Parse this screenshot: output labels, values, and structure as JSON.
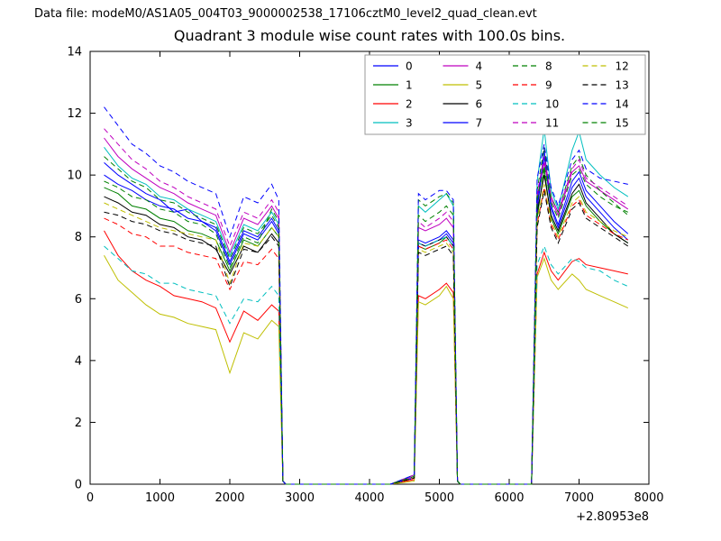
{
  "header": {
    "datafile_label": "Data file: modeM0/AS1A05_004T03_9000002538_17106cztM0_level2_quad_clean.evt"
  },
  "chart_data": {
    "type": "line",
    "title": "Quadrant 3 module wise count rates with 100.0s bins.",
    "xlabel": "",
    "ylabel": "",
    "xlim": [
      0,
      8000
    ],
    "ylim": [
      0,
      14
    ],
    "xticks": [
      0,
      1000,
      2000,
      3000,
      4000,
      5000,
      6000,
      7000,
      8000
    ],
    "yticks": [
      0,
      2,
      4,
      6,
      8,
      10,
      12,
      14
    ],
    "x_offset_label": "+2.80953e8",
    "grid": false,
    "legend_position": "upper center, inside axes, 4 columns",
    "x": [
      200,
      400,
      600,
      800,
      1000,
      1200,
      1400,
      1600,
      1800,
      2000,
      2200,
      2400,
      2600,
      2700,
      2760,
      2800,
      3500,
      4300,
      4640,
      4700,
      4800,
      5000,
      5100,
      5200,
      5260,
      5300,
      6000,
      6320,
      6400,
      6500,
      6600,
      6700,
      6900,
      7000,
      7100,
      7300,
      7500,
      7700
    ],
    "series": [
      {
        "name": "0",
        "color": "#0000ff",
        "linestyle": "solid",
        "values": [
          10.4,
          10.0,
          9.7,
          9.4,
          9.2,
          8.8,
          8.9,
          8.5,
          8.3,
          7.2,
          8.2,
          8.0,
          8.6,
          8.2,
          0.1,
          0,
          0,
          0,
          0.2,
          7.8,
          7.7,
          7.9,
          8.1,
          7.8,
          0.1,
          0,
          0,
          0,
          8.9,
          10.6,
          8.9,
          8.3,
          9.6,
          9.9,
          9.3,
          8.8,
          8.3,
          7.9
        ]
      },
      {
        "name": "1",
        "color": "#008000",
        "linestyle": "solid",
        "values": [
          9.6,
          9.4,
          9.0,
          8.9,
          8.6,
          8.5,
          8.2,
          8.1,
          7.9,
          6.9,
          7.9,
          7.7,
          8.3,
          8.0,
          0.1,
          0,
          0,
          0,
          0.2,
          7.7,
          7.6,
          7.8,
          8.0,
          7.7,
          0.1,
          0,
          0,
          0,
          8.6,
          10.2,
          8.6,
          8.1,
          9.3,
          9.5,
          9.0,
          8.5,
          8.1,
          7.8
        ]
      },
      {
        "name": "2",
        "color": "#ff0000",
        "linestyle": "solid",
        "values": [
          8.2,
          7.4,
          6.9,
          6.6,
          6.4,
          6.1,
          6.0,
          5.9,
          5.7,
          4.6,
          5.6,
          5.3,
          5.8,
          5.6,
          0.1,
          0,
          0,
          0,
          0.15,
          6.1,
          6.0,
          6.3,
          6.5,
          6.2,
          0.1,
          0,
          0,
          0,
          6.8,
          7.5,
          6.9,
          6.6,
          7.2,
          7.3,
          7.1,
          7.0,
          6.9,
          6.8
        ]
      },
      {
        "name": "3",
        "color": "#00bfbf",
        "linestyle": "solid",
        "values": [
          10.9,
          10.3,
          9.9,
          9.7,
          9.3,
          9.2,
          8.9,
          8.7,
          8.5,
          7.4,
          8.4,
          8.2,
          8.8,
          8.4,
          0.1,
          0,
          0,
          0,
          0.3,
          9.0,
          8.8,
          9.2,
          9.4,
          9.0,
          0.1,
          0,
          0,
          0,
          9.8,
          11.5,
          9.5,
          8.9,
          10.8,
          11.4,
          10.5,
          10.0,
          9.6,
          9.3
        ]
      },
      {
        "name": "4",
        "color": "#bf00bf",
        "linestyle": "solid",
        "values": [
          11.2,
          10.6,
          10.2,
          9.9,
          9.6,
          9.4,
          9.1,
          8.9,
          8.7,
          7.5,
          8.6,
          8.4,
          9.0,
          8.6,
          0.1,
          0,
          0,
          0,
          0.25,
          8.3,
          8.2,
          8.4,
          8.6,
          8.3,
          0.1,
          0,
          0,
          0,
          9.3,
          10.4,
          9.2,
          8.7,
          10.1,
          10.3,
          9.8,
          9.5,
          9.2,
          8.9
        ]
      },
      {
        "name": "5",
        "color": "#bfbf00",
        "linestyle": "solid",
        "values": [
          7.4,
          6.6,
          6.2,
          5.8,
          5.5,
          5.4,
          5.2,
          5.1,
          5.0,
          3.6,
          4.9,
          4.7,
          5.3,
          5.1,
          0.1,
          0,
          0,
          0,
          0.1,
          5.9,
          5.8,
          6.1,
          6.4,
          6.0,
          0.1,
          0,
          0,
          0,
          6.7,
          7.3,
          6.6,
          6.3,
          6.8,
          6.6,
          6.3,
          6.1,
          5.9,
          5.7
        ]
      },
      {
        "name": "6",
        "color": "#000000",
        "linestyle": "solid",
        "values": [
          9.3,
          9.1,
          8.8,
          8.7,
          8.4,
          8.3,
          8.0,
          7.9,
          7.6,
          6.8,
          7.7,
          7.5,
          8.1,
          7.8,
          0.1,
          0,
          0,
          0,
          0.2,
          7.8,
          7.7,
          7.9,
          8.0,
          7.7,
          0.1,
          0,
          0,
          0,
          8.8,
          10.0,
          8.7,
          8.2,
          9.4,
          9.7,
          9.1,
          8.6,
          8.1,
          7.8
        ]
      },
      {
        "name": "7",
        "color": "#0000ff",
        "linestyle": "solid",
        "values": [
          10.0,
          9.7,
          9.5,
          9.2,
          9.0,
          8.9,
          8.6,
          8.5,
          8.2,
          7.1,
          8.1,
          7.9,
          8.5,
          8.1,
          0.1,
          0,
          0,
          0,
          0.2,
          7.9,
          7.8,
          8.0,
          8.2,
          7.9,
          0.1,
          0,
          0,
          0,
          9.0,
          10.8,
          9.0,
          8.4,
          9.8,
          10.1,
          9.5,
          9.0,
          8.5,
          8.1
        ]
      },
      {
        "name": "8",
        "color": "#008000",
        "linestyle": "dashed",
        "values": [
          9.8,
          9.6,
          9.3,
          9.2,
          8.9,
          8.8,
          8.5,
          8.4,
          8.1,
          7.0,
          8.0,
          7.8,
          8.9,
          8.5,
          0.1,
          0,
          0,
          0,
          0.3,
          9.2,
          9.0,
          9.3,
          9.4,
          9.1,
          0.1,
          0,
          0,
          0,
          9.5,
          10.9,
          9.3,
          8.8,
          10.3,
          10.6,
          10.0,
          9.5,
          9.1,
          8.7
        ]
      },
      {
        "name": "9",
        "color": "#ff0000",
        "linestyle": "dashed",
        "values": [
          8.6,
          8.4,
          8.1,
          8.0,
          7.7,
          7.7,
          7.5,
          7.4,
          7.3,
          6.3,
          7.2,
          7.1,
          7.6,
          7.3,
          0.1,
          0,
          0,
          0,
          0.2,
          7.7,
          7.6,
          7.8,
          7.9,
          7.6,
          0.1,
          0,
          0,
          0,
          8.4,
          9.6,
          8.4,
          7.9,
          9.0,
          9.2,
          8.7,
          8.4,
          8.1,
          7.9
        ]
      },
      {
        "name": "10",
        "color": "#00bfbf",
        "linestyle": "dashed",
        "values": [
          7.7,
          7.3,
          6.9,
          6.8,
          6.5,
          6.5,
          6.3,
          6.2,
          6.1,
          5.2,
          6.0,
          5.9,
          6.4,
          6.1,
          0.1,
          0,
          0,
          0,
          0.2,
          7.8,
          7.7,
          7.9,
          8.0,
          7.7,
          0.1,
          0,
          0,
          0,
          7.1,
          7.7,
          7.1,
          6.8,
          7.3,
          7.2,
          7.0,
          6.9,
          6.6,
          6.4
        ]
      },
      {
        "name": "11",
        "color": "#bf00bf",
        "linestyle": "dashed",
        "values": [
          11.5,
          11.0,
          10.5,
          10.2,
          9.8,
          9.6,
          9.3,
          9.1,
          8.9,
          7.7,
          8.8,
          8.6,
          9.2,
          8.8,
          0.1,
          0,
          0,
          0,
          0.3,
          8.5,
          8.3,
          8.6,
          8.8,
          8.5,
          0.1,
          0,
          0,
          0,
          9.4,
          10.6,
          9.3,
          8.8,
          10.2,
          10.5,
          9.9,
          9.6,
          9.3,
          9.0
        ]
      },
      {
        "name": "12",
        "color": "#bfbf00",
        "linestyle": "dashed",
        "values": [
          9.1,
          8.9,
          8.7,
          8.5,
          8.3,
          8.2,
          8.1,
          8.0,
          7.9,
          6.5,
          7.8,
          7.7,
          8.3,
          8.0,
          0.1,
          0,
          0,
          0,
          0.2,
          7.6,
          7.5,
          7.7,
          7.8,
          7.5,
          0.1,
          0,
          0,
          0,
          8.5,
          9.7,
          8.5,
          8.0,
          9.1,
          9.3,
          8.8,
          8.5,
          8.2,
          8.0
        ]
      },
      {
        "name": "13",
        "color": "#000000",
        "linestyle": "dashed",
        "values": [
          8.8,
          8.7,
          8.5,
          8.4,
          8.2,
          8.1,
          7.9,
          7.8,
          7.7,
          6.4,
          7.6,
          7.5,
          8.0,
          7.7,
          0.1,
          0,
          0,
          0,
          0.2,
          7.5,
          7.4,
          7.6,
          7.7,
          7.4,
          0.1,
          0,
          0,
          0,
          8.3,
          9.5,
          8.3,
          7.8,
          8.9,
          9.1,
          8.6,
          8.3,
          8.0,
          7.7
        ]
      },
      {
        "name": "14",
        "color": "#0000ff",
        "linestyle": "dashed",
        "values": [
          12.2,
          11.6,
          11.0,
          10.7,
          10.3,
          10.1,
          9.8,
          9.6,
          9.4,
          8.0,
          9.3,
          9.1,
          9.7,
          9.2,
          0.1,
          0,
          0,
          0,
          0.3,
          9.4,
          9.2,
          9.5,
          9.5,
          9.2,
          0.1,
          0,
          0,
          0,
          9.9,
          11.0,
          9.6,
          9.0,
          10.5,
          10.8,
          10.2,
          9.9,
          9.8,
          9.7
        ]
      },
      {
        "name": "15",
        "color": "#008000",
        "linestyle": "dashed",
        "values": [
          10.6,
          10.2,
          9.8,
          9.6,
          9.2,
          9.1,
          8.8,
          8.6,
          8.4,
          7.3,
          8.3,
          8.1,
          8.7,
          8.3,
          0.1,
          0,
          0,
          0,
          0.25,
          8.7,
          8.5,
          8.8,
          9.0,
          8.7,
          0.1,
          0,
          0,
          0,
          9.2,
          10.3,
          9.1,
          8.6,
          10.0,
          10.2,
          9.7,
          9.3,
          9.0,
          8.8
        ]
      }
    ]
  }
}
